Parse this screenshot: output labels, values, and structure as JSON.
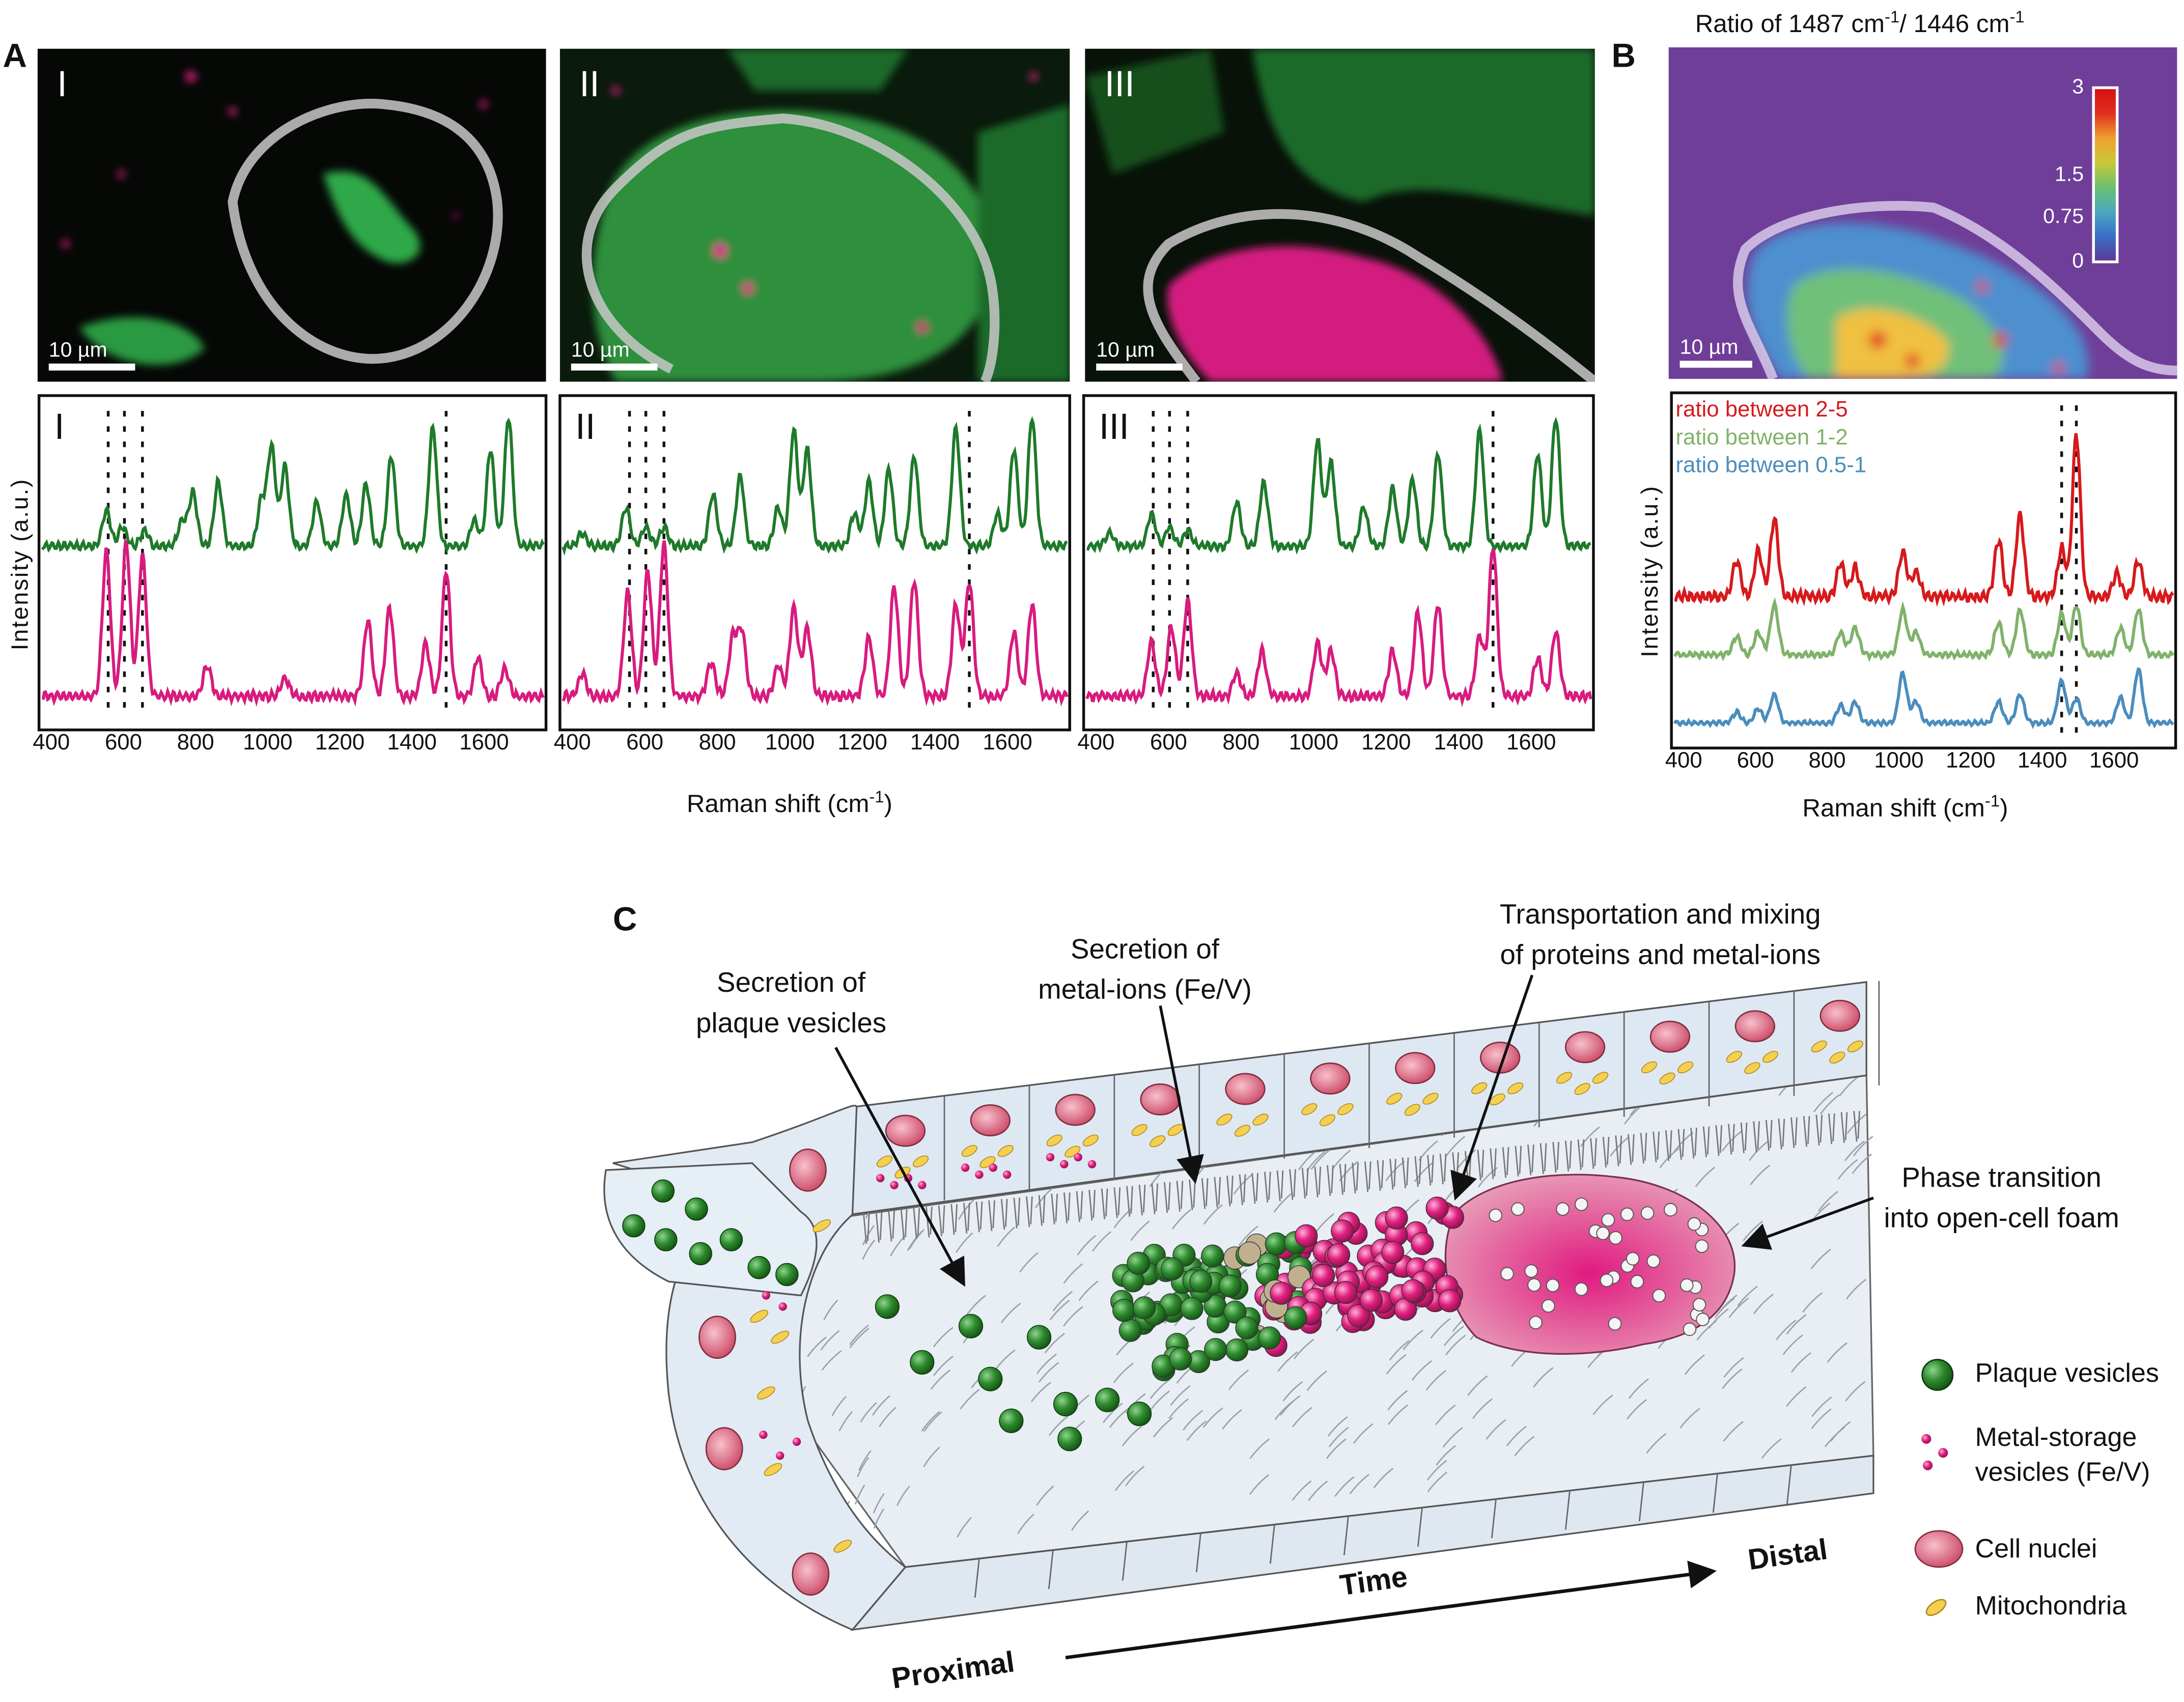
{
  "panel_labels": {
    "a": "A",
    "b": "B",
    "c": "C"
  },
  "panel_a": {
    "images": [
      {
        "roman": "I",
        "scale_bar": "10 µm"
      },
      {
        "roman": "II",
        "scale_bar": "10 µm"
      },
      {
        "roman": "III",
        "scale_bar": "10 µm"
      }
    ],
    "spectra_romans": [
      "I",
      "II",
      "III"
    ],
    "y_label": "Intensity (a.u.)",
    "x_label": "Raman shift (cm",
    "x_label_sup": "-1",
    "x_label_close": ")"
  },
  "panel_b": {
    "title_part1": "Ratio of 1487 cm",
    "title_sup1": "-1",
    "title_part2": "/ 1446 cm",
    "title_sup2": "-1",
    "scale_bar": "10 µm",
    "colorbar_ticks": [
      "3",
      "1.5",
      "0.75",
      "0"
    ],
    "legend": [
      {
        "label": "ratio between 2-5",
        "color": "#d7191c"
      },
      {
        "label": "ratio between 1-2",
        "color": "#7fb26a"
      },
      {
        "label": "ratio between 0.5-1",
        "color": "#4a8dbd"
      }
    ],
    "y_label": "Intensity (a.u.)",
    "x_label": "Raman shift (cm",
    "x_label_sup": "-1",
    "x_label_close": ")"
  },
  "panel_c": {
    "callouts": [
      {
        "line1": "Secretion of",
        "line2": "plaque vesicles"
      },
      {
        "line1": "Secretion of",
        "line2": "metal-ions (Fe/V)"
      },
      {
        "line1": "Transportation and mixing",
        "line2": "of proteins and metal-ions"
      },
      {
        "line1": "Phase transition",
        "line2": "into open-cell foam"
      }
    ],
    "axis": {
      "start": "Proximal",
      "middle": "Time",
      "end": "Distal"
    },
    "legend": {
      "plaque": "Plaque vesicles",
      "metal_1": "Metal-storage",
      "metal_2": "vesicles (Fe/V)",
      "nuclei": "Cell nuclei",
      "mito": "Mitochondria"
    },
    "colors": {
      "plaque": "#2e8b2e",
      "metal": "#e0207f",
      "nucleus": "#e07890",
      "mito": "#f5d050",
      "tissue": "#e4edf5"
    }
  },
  "chart_data": [
    {
      "type": "line",
      "title": "A-I",
      "xlabel": "Raman shift (cm-1)",
      "ylabel": "Intensity (a.u.)",
      "xlim": [
        362,
        1760
      ],
      "x_ticks": [
        "400",
        "600",
        "800",
        "1000",
        "1200",
        "1400",
        "1600"
      ],
      "x_tick_values": [
        400,
        600,
        800,
        1000,
        1200,
        1400,
        1600
      ],
      "vlines": [
        550,
        595,
        645,
        1487
      ],
      "series": [
        {
          "name": "green",
          "color": "#1e7a2a",
          "offset": 0.55,
          "scale": 0.42,
          "peaks": [
            [
              545,
              0.28
            ],
            [
              590,
              0.15
            ],
            [
              650,
              0.12
            ],
            [
              755,
              0.2
            ],
            [
              785,
              0.42
            ],
            [
              855,
              0.5
            ],
            [
              975,
              0.35
            ],
            [
              1003,
              0.78
            ],
            [
              1040,
              0.62
            ],
            [
              1128,
              0.35
            ],
            [
              1210,
              0.4
            ],
            [
              1265,
              0.48
            ],
            [
              1335,
              0.7
            ],
            [
              1450,
              0.92
            ],
            [
              1565,
              0.2
            ],
            [
              1610,
              0.75
            ],
            [
              1660,
              1.0
            ]
          ]
        },
        {
          "name": "magenta",
          "color": "#d81b7e",
          "offset": 0.06,
          "scale": 0.5,
          "peaks": [
            [
              545,
              0.95
            ],
            [
              600,
              1.0
            ],
            [
              645,
              0.92
            ],
            [
              825,
              0.2
            ],
            [
              1040,
              0.12
            ],
            [
              1270,
              0.5
            ],
            [
              1330,
              0.58
            ],
            [
              1430,
              0.35
            ],
            [
              1487,
              0.82
            ],
            [
              1575,
              0.25
            ],
            [
              1650,
              0.18
            ]
          ]
        }
      ]
    },
    {
      "type": "line",
      "title": "A-II",
      "xlabel": "Raman shift (cm-1)",
      "ylabel": "Intensity (a.u.)",
      "xlim": [
        362,
        1760
      ],
      "x_ticks": [
        "400",
        "600",
        "800",
        "1000",
        "1200",
        "1400",
        "1600"
      ],
      "x_tick_values": [
        400,
        600,
        800,
        1000,
        1200,
        1400,
        1600
      ],
      "vlines": [
        550,
        595,
        645,
        1487
      ],
      "series": [
        {
          "name": "green",
          "color": "#1e7a2a",
          "offset": 0.55,
          "scale": 0.42,
          "peaks": [
            [
              420,
              0.1
            ],
            [
              540,
              0.3
            ],
            [
              595,
              0.15
            ],
            [
              645,
              0.15
            ],
            [
              780,
              0.4
            ],
            [
              855,
              0.55
            ],
            [
              960,
              0.3
            ],
            [
              1003,
              0.9
            ],
            [
              1040,
              0.75
            ],
            [
              1170,
              0.25
            ],
            [
              1210,
              0.5
            ],
            [
              1265,
              0.6
            ],
            [
              1335,
              0.7
            ],
            [
              1450,
              0.92
            ],
            [
              1565,
              0.25
            ],
            [
              1610,
              0.75
            ],
            [
              1660,
              1.0
            ]
          ]
        },
        {
          "name": "magenta",
          "color": "#d81b7e",
          "offset": 0.06,
          "scale": 0.5,
          "peaks": [
            [
              420,
              0.15
            ],
            [
              545,
              0.68
            ],
            [
              600,
              0.82
            ],
            [
              645,
              1.0
            ],
            [
              775,
              0.22
            ],
            [
              835,
              0.38
            ],
            [
              860,
              0.42
            ],
            [
              960,
              0.2
            ],
            [
              1003,
              0.58
            ],
            [
              1040,
              0.45
            ],
            [
              1210,
              0.38
            ],
            [
              1280,
              0.72
            ],
            [
              1335,
              0.76
            ],
            [
              1450,
              0.6
            ],
            [
              1487,
              0.75
            ],
            [
              1610,
              0.42
            ],
            [
              1660,
              0.6
            ]
          ]
        }
      ]
    },
    {
      "type": "line",
      "title": "A-III",
      "xlabel": "Raman shift (cm-1)",
      "ylabel": "Intensity (a.u.)",
      "xlim": [
        362,
        1760
      ],
      "x_ticks": [
        "400",
        "600",
        "800",
        "1000",
        "1200",
        "1400",
        "1600"
      ],
      "x_tick_values": [
        400,
        600,
        800,
        1000,
        1200,
        1400,
        1600
      ],
      "vlines": [
        550,
        595,
        645,
        1487
      ],
      "series": [
        {
          "name": "green",
          "color": "#1e7a2a",
          "offset": 0.55,
          "scale": 0.42,
          "peaks": [
            [
              430,
              0.1
            ],
            [
              545,
              0.25
            ],
            [
              595,
              0.15
            ],
            [
              645,
              0.12
            ],
            [
              780,
              0.35
            ],
            [
              855,
              0.5
            ],
            [
              1003,
              0.82
            ],
            [
              1040,
              0.65
            ],
            [
              1130,
              0.3
            ],
            [
              1210,
              0.45
            ],
            [
              1265,
              0.52
            ],
            [
              1335,
              0.72
            ],
            [
              1450,
              0.9
            ],
            [
              1610,
              0.72
            ],
            [
              1660,
              1.0
            ]
          ]
        },
        {
          "name": "magenta",
          "color": "#d81b7e",
          "offset": 0.06,
          "scale": 0.5,
          "peaks": [
            [
              545,
              0.35
            ],
            [
              600,
              0.45
            ],
            [
              645,
              0.62
            ],
            [
              780,
              0.15
            ],
            [
              850,
              0.3
            ],
            [
              1003,
              0.35
            ],
            [
              1040,
              0.3
            ],
            [
              1210,
              0.3
            ],
            [
              1280,
              0.55
            ],
            [
              1335,
              0.6
            ],
            [
              1450,
              0.4
            ],
            [
              1487,
              0.98
            ],
            [
              1610,
              0.25
            ],
            [
              1660,
              0.42
            ]
          ]
        }
      ]
    },
    {
      "type": "line",
      "title": "B",
      "xlabel": "Raman shift (cm-1)",
      "ylabel": "Intensity (a.u.)",
      "xlim": [
        362,
        1760
      ],
      "x_ticks": [
        "400",
        "600",
        "800",
        "1000",
        "1200",
        "1400",
        "1600"
      ],
      "x_tick_values": [
        400,
        600,
        800,
        1000,
        1200,
        1400,
        1600
      ],
      "vlines": [
        1446,
        1487
      ],
      "series": [
        {
          "name": "ratio between 2-5",
          "color": "#d7191c",
          "offset": 0.42,
          "scale": 0.5,
          "peaks": [
            [
              540,
              0.22
            ],
            [
              600,
              0.28
            ],
            [
              645,
              0.48
            ],
            [
              830,
              0.2
            ],
            [
              870,
              0.18
            ],
            [
              1003,
              0.28
            ],
            [
              1040,
              0.15
            ],
            [
              1270,
              0.35
            ],
            [
              1330,
              0.5
            ],
            [
              1446,
              0.3
            ],
            [
              1487,
              1.0
            ],
            [
              1600,
              0.14
            ],
            [
              1660,
              0.22
            ]
          ]
        },
        {
          "name": "ratio between 1-2",
          "color": "#7fb26a",
          "offset": 0.24,
          "scale": 0.28,
          "peaks": [
            [
              540,
              0.2
            ],
            [
              600,
              0.25
            ],
            [
              645,
              0.55
            ],
            [
              830,
              0.25
            ],
            [
              870,
              0.3
            ],
            [
              1003,
              0.5
            ],
            [
              1040,
              0.25
            ],
            [
              1270,
              0.35
            ],
            [
              1330,
              0.5
            ],
            [
              1446,
              0.45
            ],
            [
              1487,
              0.55
            ],
            [
              1610,
              0.3
            ],
            [
              1660,
              0.5
            ]
          ]
        },
        {
          "name": "ratio between 0.5-1",
          "color": "#4a8dbd",
          "offset": 0.03,
          "scale": 0.22,
          "peaks": [
            [
              540,
              0.15
            ],
            [
              600,
              0.2
            ],
            [
              645,
              0.4
            ],
            [
              830,
              0.25
            ],
            [
              870,
              0.3
            ],
            [
              1003,
              0.7
            ],
            [
              1040,
              0.3
            ],
            [
              1270,
              0.3
            ],
            [
              1330,
              0.4
            ],
            [
              1446,
              0.6
            ],
            [
              1487,
              0.35
            ],
            [
              1610,
              0.35
            ],
            [
              1660,
              0.75
            ]
          ]
        }
      ]
    }
  ]
}
